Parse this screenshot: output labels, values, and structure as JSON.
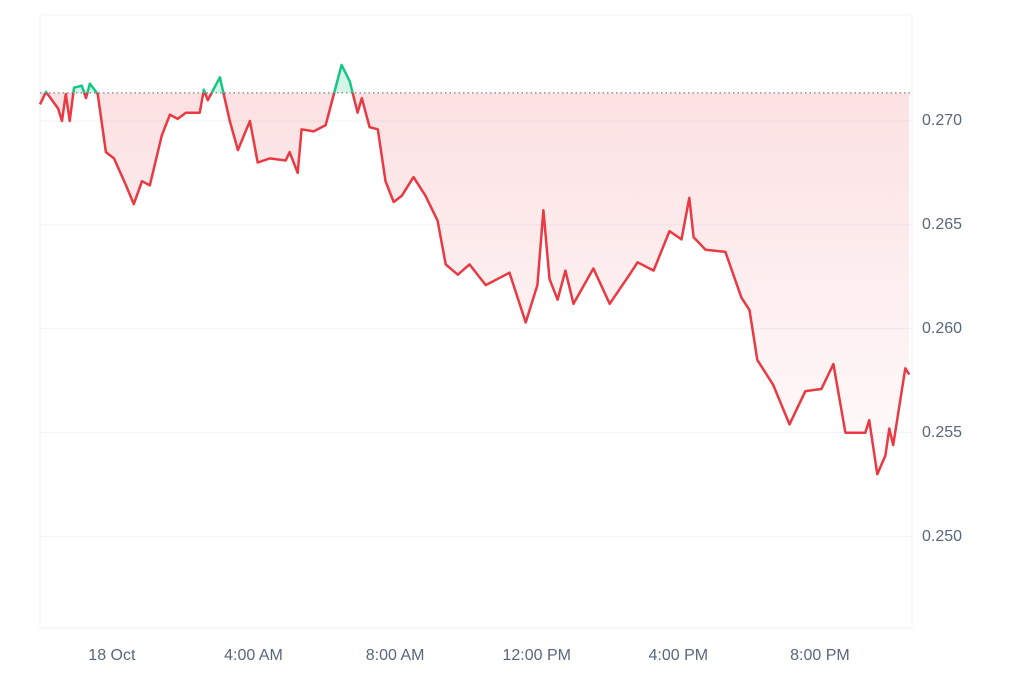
{
  "chart_data": {
    "type": "line",
    "x": [
      -2.03,
      -1.86,
      -1.52,
      -1.41,
      -1.3,
      -1.19,
      -1.07,
      -0.85,
      -0.73,
      -0.62,
      -0.4,
      -0.17,
      0.06,
      0.4,
      0.62,
      0.85,
      1.07,
      1.41,
      1.64,
      1.86,
      2.09,
      2.48,
      2.6,
      2.71,
      3.05,
      3.33,
      3.56,
      3.9,
      4.12,
      4.46,
      4.91,
      5.02,
      5.25,
      5.36,
      5.7,
      6.04,
      6.27,
      6.49,
      6.72,
      6.94,
      7.06,
      7.28,
      7.51,
      7.73,
      7.96,
      8.19,
      8.52,
      8.86,
      9.2,
      9.43,
      9.77,
      10.1,
      10.56,
      11.01,
      11.23,
      11.69,
      12.02,
      12.19,
      12.36,
      12.59,
      12.81,
      13.04,
      13.6,
      14.06,
      14.62,
      14.85,
      15.3,
      15.75,
      16.09,
      16.31,
      16.43,
      16.77,
      17.33,
      17.78,
      18.01,
      18.23,
      18.68,
      19.14,
      19.59,
      20.04,
      20.38,
      20.72,
      21.28,
      21.39,
      21.62,
      21.85,
      21.96,
      22.07,
      22.41,
      22.52
    ],
    "values": [
      0.2708,
      0.2714,
      0.2706,
      0.27,
      0.2713,
      0.27,
      0.2716,
      0.2717,
      0.2711,
      0.2718,
      0.2713,
      0.2685,
      0.2682,
      0.2669,
      0.266,
      0.2671,
      0.2669,
      0.2693,
      0.2703,
      0.2701,
      0.2704,
      0.2704,
      0.2715,
      0.271,
      0.2721,
      0.27,
      0.2686,
      0.27,
      0.268,
      0.2682,
      0.2681,
      0.2685,
      0.2675,
      0.2696,
      0.2695,
      0.2698,
      0.2713,
      0.2727,
      0.2719,
      0.2704,
      0.2711,
      0.2697,
      0.2696,
      0.2671,
      0.2661,
      0.2664,
      0.2673,
      0.2664,
      0.2652,
      0.2631,
      0.2626,
      0.2631,
      0.2621,
      0.2625,
      0.2627,
      0.2603,
      0.2621,
      0.2657,
      0.2624,
      0.2614,
      0.2628,
      0.2612,
      0.2629,
      0.2612,
      0.2626,
      0.2632,
      0.2628,
      0.2647,
      0.2643,
      0.2663,
      0.2644,
      0.2638,
      0.2637,
      0.2615,
      0.2609,
      0.2585,
      0.2573,
      0.2554,
      0.257,
      0.2571,
      0.2583,
      0.255,
      0.255,
      0.2556,
      0.253,
      0.2539,
      0.2552,
      0.2544,
      0.2581,
      0.2578
    ],
    "baseline": 0.27135,
    "color_up": "#16c784",
    "color_down": "#ea3943",
    "xlim": [
      -2.03,
      22.6
    ],
    "xticks": [
      {
        "value": 0,
        "label": "18 Oct"
      },
      {
        "value": 4,
        "label": "4:00 AM"
      },
      {
        "value": 8,
        "label": "8:00 AM"
      },
      {
        "value": 12,
        "label": "12:00 PM"
      },
      {
        "value": 16,
        "label": "4:00 PM"
      },
      {
        "value": 20,
        "label": "8:00 PM"
      }
    ],
    "ylim": [
      0.2456,
      0.2751
    ],
    "yticks": [
      {
        "value": 0.25,
        "label": "0.250"
      },
      0.255,
      {
        "value": 0.26,
        "label": "0.260"
      },
      0.265,
      {
        "value": 0.27,
        "label": "0.270"
      }
    ],
    "grid": true
  }
}
